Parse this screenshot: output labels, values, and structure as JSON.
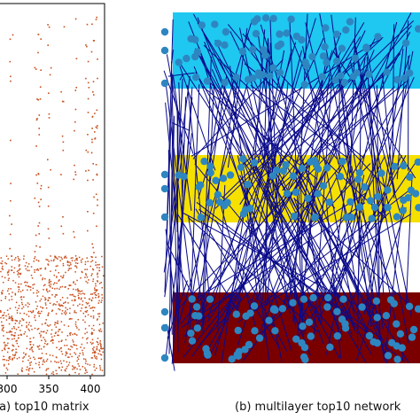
{
  "left_panel": {
    "x_ticks": [
      "300",
      "350",
      "400"
    ],
    "caption": "(a) top10 matrix",
    "dot_color": "#c8501e"
  },
  "right_panel": {
    "caption": "(b) multilayer top10 network",
    "layers": [
      {
        "name": "top",
        "color": "#1ec8f0"
      },
      {
        "name": "middle",
        "color": "#f5e000"
      },
      {
        "name": "bottom",
        "color": "#7a0000"
      }
    ],
    "interlayer_edge_color": "#0a0a8a",
    "node_color": "#2e86c1"
  }
}
